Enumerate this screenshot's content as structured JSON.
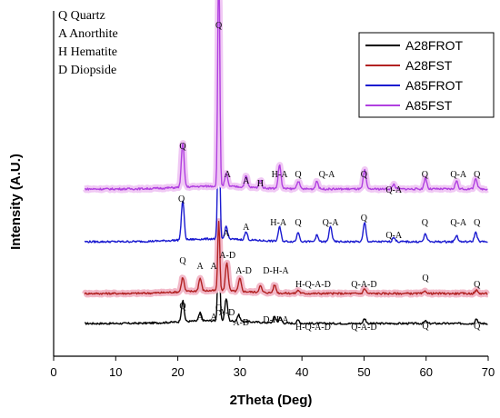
{
  "chart_data": {
    "type": "line",
    "xlabel": "2Theta (Deg)",
    "ylabel": "Intensity (A.U.)",
    "xlim": [
      0,
      70
    ],
    "xticks": [
      "0",
      "10",
      "20",
      "30",
      "40",
      "50",
      "60",
      "70"
    ],
    "phase_key": [
      "Q Quartz",
      "A Anorthite",
      "H Hematite",
      "D Diopside"
    ],
    "legend_position": "top-right",
    "series": [
      {
        "name": "A28FROT",
        "color": "#000000",
        "baseline": 0.0,
        "peaks": [
          [
            20.8,
            0.13
          ],
          [
            23.6,
            0.05
          ],
          [
            26.6,
            0.62
          ],
          [
            27.8,
            0.14
          ],
          [
            29.8,
            0.04
          ],
          [
            35.6,
            0.04
          ],
          [
            36.5,
            0.035
          ],
          [
            39.4,
            0.02
          ],
          [
            50.1,
            0.03
          ],
          [
            59.9,
            0.015
          ],
          [
            68.1,
            0.03
          ]
        ],
        "labels": [
          [
            "Q",
            20.8
          ],
          [
            "A",
            23.6
          ],
          [
            "A",
            25.8
          ],
          [
            "Q",
            26.6
          ],
          [
            "A-D",
            27.9
          ],
          [
            "A-D",
            30.2
          ],
          [
            "D-H-A",
            35.8
          ],
          [
            "H-Q-A-D",
            41.8
          ],
          [
            "Q-A-D",
            50.0
          ],
          [
            "Q",
            59.9
          ],
          [
            "Q",
            68.2
          ]
        ]
      },
      {
        "name": "A28FST",
        "color": "#b22222",
        "baseline": 0.0,
        "peaks": [
          [
            20.8,
            0.09
          ],
          [
            23.6,
            0.08
          ],
          [
            26.6,
            0.44
          ],
          [
            27.9,
            0.18
          ],
          [
            30.0,
            0.08
          ],
          [
            33.3,
            0.04
          ],
          [
            35.6,
            0.05
          ],
          [
            39.4,
            0.02
          ],
          [
            50.1,
            0.03
          ],
          [
            59.9,
            0.015
          ],
          [
            68.1,
            0.02
          ]
        ],
        "labels": [
          [
            "Q",
            20.8
          ],
          [
            "A",
            23.6
          ],
          [
            "A",
            25.8
          ],
          [
            "A-D",
            28.0
          ],
          [
            "A-D",
            30.6
          ],
          [
            "D-H-A",
            35.8
          ],
          [
            "H-Q-A-D",
            41.8
          ],
          [
            "Q-A-D",
            50.0
          ],
          [
            "Q",
            59.9
          ],
          [
            "Q",
            68.2
          ]
        ]
      },
      {
        "name": "A85FROT",
        "color": "#1a1ad0",
        "baseline": 0.0,
        "peaks": [
          [
            20.8,
            0.25
          ],
          [
            26.6,
            1.0
          ],
          [
            27.8,
            0.08
          ],
          [
            31.0,
            0.05
          ],
          [
            36.4,
            0.09
          ],
          [
            39.4,
            0.06
          ],
          [
            42.4,
            0.04
          ],
          [
            44.6,
            0.1
          ],
          [
            50.1,
            0.12
          ],
          [
            54.8,
            0.03
          ],
          [
            59.9,
            0.05
          ],
          [
            64.9,
            0.04
          ],
          [
            68.0,
            0.06
          ]
        ],
        "labels": [
          [
            "Q",
            20.6
          ],
          [
            "A",
            27.8
          ],
          [
            "A",
            31.0
          ],
          [
            "H-A",
            36.2
          ],
          [
            "Q",
            39.4
          ],
          [
            "Q-A",
            44.6
          ],
          [
            "Q",
            50.0
          ],
          [
            "Q-A",
            54.8
          ],
          [
            "Q",
            59.8
          ],
          [
            "Q-A",
            65.2
          ],
          [
            "Q",
            68.2
          ]
        ]
      },
      {
        "name": "A85FST",
        "color": "#b040e0",
        "baseline": 0.0,
        "peaks": [
          [
            20.8,
            0.28
          ],
          [
            26.6,
            1.45
          ],
          [
            27.8,
            0.08
          ],
          [
            31.0,
            0.07
          ],
          [
            33.3,
            0.05
          ],
          [
            36.4,
            0.15
          ],
          [
            39.4,
            0.05
          ],
          [
            42.4,
            0.05
          ],
          [
            50.1,
            0.12
          ],
          [
            54.8,
            0.03
          ],
          [
            59.9,
            0.07
          ],
          [
            64.9,
            0.05
          ],
          [
            68.0,
            0.07
          ]
        ],
        "labels": [
          [
            "Q",
            20.8
          ],
          [
            "Q",
            26.6
          ],
          [
            "A",
            28.0
          ],
          [
            "A",
            31.0
          ],
          [
            "H",
            33.3
          ],
          [
            "H-A",
            36.4
          ],
          [
            "Q",
            39.4
          ],
          [
            "Q-A",
            44.0
          ],
          [
            "Q",
            50.0
          ],
          [
            "Q-A",
            54.8
          ],
          [
            "Q",
            59.8
          ],
          [
            "Q-A",
            65.2
          ],
          [
            "Q",
            68.2
          ]
        ]
      }
    ]
  }
}
